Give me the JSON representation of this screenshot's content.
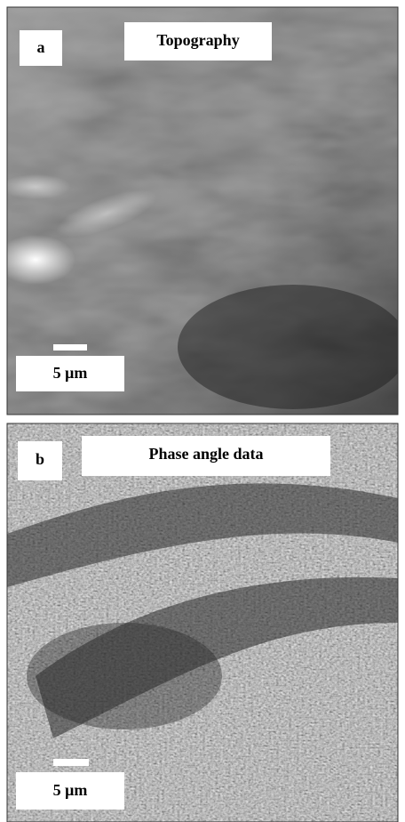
{
  "panels": [
    {
      "label": "a",
      "title": "Topography",
      "scale_label": "5 μm"
    },
    {
      "label": "b",
      "title": "Phase angle data",
      "scale_label": "5 μm"
    }
  ]
}
